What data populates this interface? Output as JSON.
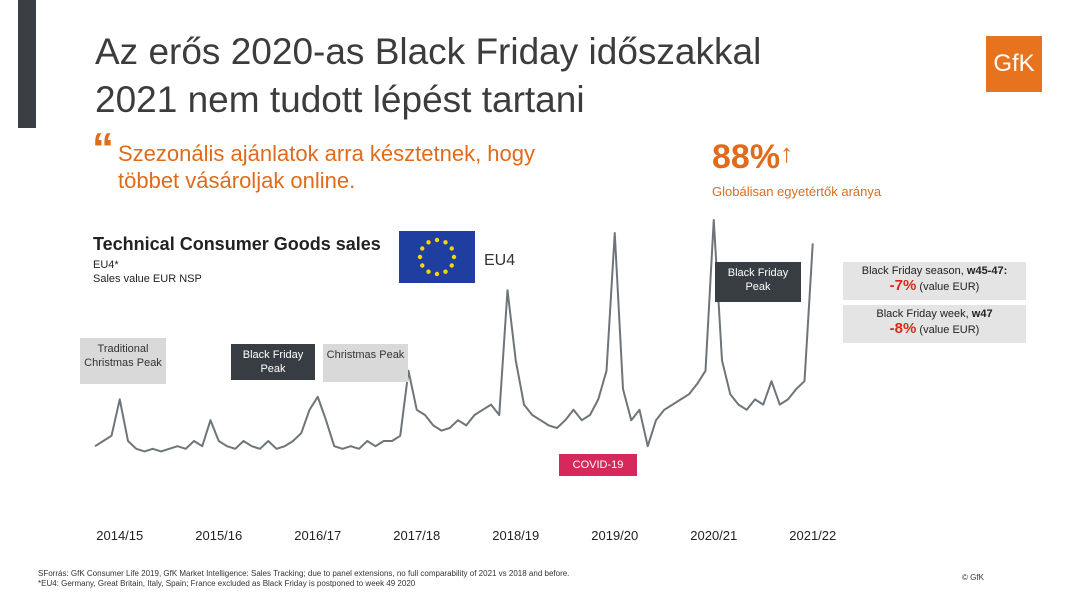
{
  "header": {
    "title_lines": [
      "Az erős 2020-as Black Friday időszakkal",
      "2021 nem tudott lépést tartani"
    ],
    "logo": "GfK"
  },
  "quote": {
    "mark": "“",
    "lines": [
      "Szezonális ajánlatok arra késztetnek, hogy",
      "többet vásároljak online."
    ]
  },
  "stat": {
    "value": "88%",
    "arrow": "↑",
    "caption": "Globálisan egyetértők aránya"
  },
  "chart_data": {
    "type": "line",
    "title": "Technical Consumer Goods sales",
    "subtitle_lines": [
      "EU4*",
      "Sales value EUR NSP"
    ],
    "region_label": "EU4",
    "categories": [
      null,
      null,
      null,
      "2014/15",
      null,
      null,
      null,
      null,
      null,
      null,
      null,
      null,
      null,
      null,
      null,
      "2015/16",
      null,
      null,
      null,
      null,
      null,
      null,
      null,
      null,
      null,
      null,
      null,
      "2016/17",
      null,
      null,
      null,
      null,
      null,
      null,
      null,
      null,
      null,
      null,
      null,
      "2017/18",
      null,
      null,
      null,
      null,
      null,
      null,
      null,
      null,
      null,
      null,
      null,
      "2018/19",
      null,
      null,
      null,
      null,
      null,
      null,
      null,
      null,
      null,
      null,
      null,
      "2019/20",
      null,
      null,
      null,
      null,
      null,
      null,
      null,
      null,
      null,
      null,
      null,
      "2020/21",
      null,
      null,
      null,
      null,
      null,
      null,
      null,
      null,
      null,
      null,
      null,
      "2021/22"
    ],
    "series": [
      {
        "name": "EU4",
        "color": "#6d757a",
        "values": [
          13,
          15,
          17,
          31,
          15,
          12,
          11,
          12,
          11,
          12,
          13,
          12,
          15,
          13,
          23,
          15,
          13,
          12,
          15,
          13,
          12,
          15,
          12,
          13,
          15,
          18,
          27,
          32,
          23,
          13,
          12,
          13,
          12,
          15,
          13,
          15,
          15,
          17,
          42,
          27,
          25,
          21,
          19,
          20,
          23,
          21,
          25,
          27,
          29,
          25,
          73,
          46,
          29,
          25,
          23,
          21,
          20,
          23,
          27,
          23,
          25,
          31,
          42,
          95,
          35,
          23,
          27,
          13,
          23,
          27,
          29,
          31,
          33,
          37,
          42,
          100,
          46,
          33,
          29,
          27,
          31,
          29,
          38,
          29,
          31,
          35,
          38,
          91
        ]
      }
    ],
    "ylim": [
      0,
      100
    ],
    "annotations": [
      "Traditional Christmas Peak",
      "Black Friday Peak",
      "Christmas Peak",
      "COVID-19",
      "Black Friday Peak"
    ]
  },
  "kpis": [
    {
      "label": "Black Friday season, ",
      "label_bold": "w45-47:",
      "value": "-7%",
      "unit": "(value EUR)"
    },
    {
      "label": "Black Friday week, ",
      "label_bold": "w47",
      "value": "-8%",
      "unit": "(value EUR)"
    }
  ],
  "footer": {
    "notes": [
      "SForrás: GfK Consumer Life 2019, GfK Market Intelligence: Sales Tracking; due to panel extensions, no full comparability of 2021 vs 2018 and before.",
      "*EU4: Germany, Great Britain, Italy, Spain; France excluded as Black Friday is postponed to week 49 2020"
    ],
    "copyright": "© GfK"
  }
}
